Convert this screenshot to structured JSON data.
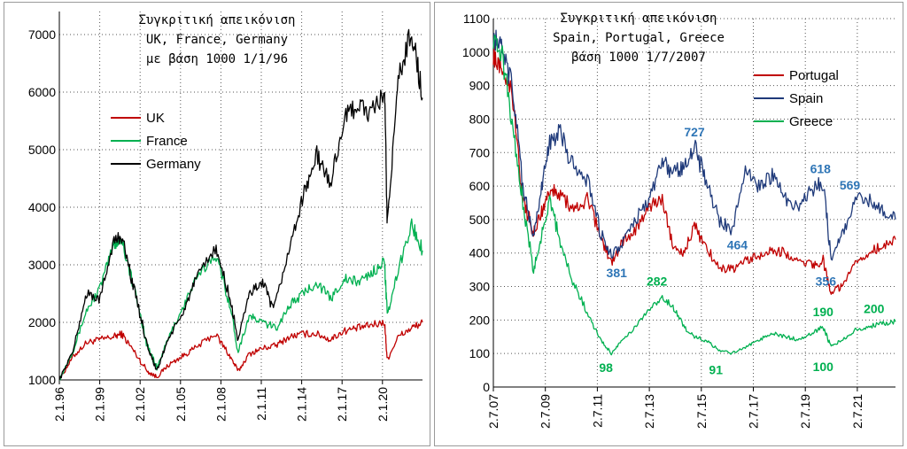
{
  "chart_data": [
    {
      "type": "line",
      "title_lines": [
        "Συγκριτική απεικόνιση",
        "UK, France, Germany",
        "με βάση 1000 1/1/96"
      ],
      "x_ticks": [
        "2.1.96",
        "2.1.99",
        "2.1.02",
        "2.1.05",
        "2.1.08",
        "2.1.11",
        "2.1.14",
        "2.1.17",
        "2.1.20"
      ],
      "x_range": [
        1996.0,
        2022.8
      ],
      "ylim": [
        1000,
        7400
      ],
      "y_ticks": [
        1000,
        2000,
        3000,
        4000,
        5000,
        6000,
        7000
      ],
      "grid": "dotted",
      "legend_position": "upper-left",
      "series": [
        {
          "name": "UK",
          "color": "#c00000",
          "x": [
            1996.0,
            1997.0,
            1998.0,
            1999.0,
            2000.0,
            2000.6,
            2001.5,
            2002.5,
            2003.2,
            2004.0,
            2005.0,
            2006.0,
            2007.5,
            2008.5,
            2009.2,
            2010.0,
            2011.0,
            2012.0,
            2013.0,
            2014.0,
            2015.0,
            2016.0,
            2017.0,
            2018.0,
            2019.0,
            2020.0,
            2020.2,
            2021.0,
            2022.0,
            2022.8
          ],
          "y": [
            1000,
            1400,
            1650,
            1700,
            1750,
            1800,
            1500,
            1150,
            1050,
            1250,
            1400,
            1550,
            1800,
            1450,
            1150,
            1450,
            1550,
            1600,
            1750,
            1800,
            1800,
            1700,
            1850,
            1900,
            1950,
            2000,
            1350,
            1750,
            1900,
            2000
          ]
        },
        {
          "name": "France",
          "color": "#00b050",
          "x": [
            1996.0,
            1997.0,
            1998.0,
            1999.0,
            2000.0,
            2000.6,
            2001.5,
            2002.5,
            2003.2,
            2004.0,
            2005.0,
            2006.0,
            2007.5,
            2008.5,
            2009.2,
            2010.0,
            2011.0,
            2012.0,
            2013.0,
            2014.0,
            2015.0,
            2016.0,
            2017.0,
            2018.0,
            2019.0,
            2020.0,
            2020.2,
            2021.0,
            2022.0,
            2022.8
          ],
          "y": [
            1000,
            1500,
            2200,
            2600,
            3350,
            3450,
            2600,
            1600,
            1200,
            1700,
            2200,
            2700,
            3200,
            2400,
            1500,
            2100,
            2000,
            1900,
            2300,
            2500,
            2700,
            2400,
            2750,
            2700,
            2850,
            3050,
            2100,
            2900,
            3700,
            3250
          ]
        },
        {
          "name": "Germany",
          "color": "#000000",
          "x": [
            1996.0,
            1997.0,
            1998.0,
            1999.0,
            2000.0,
            2000.6,
            2001.5,
            2002.5,
            2003.2,
            2004.0,
            2005.0,
            2006.0,
            2007.5,
            2008.5,
            2009.2,
            2010.0,
            2011.0,
            2011.8,
            2013.0,
            2014.0,
            2015.0,
            2016.0,
            2017.0,
            2018.0,
            2019.0,
            2020.0,
            2020.2,
            2021.0,
            2022.0,
            2022.8
          ],
          "y": [
            1000,
            1500,
            2500,
            2400,
            3400,
            3500,
            2600,
            1600,
            1150,
            1700,
            2100,
            2700,
            3300,
            2500,
            1700,
            2500,
            2700,
            2200,
            3300,
            4200,
            4900,
            4400,
            5500,
            5800,
            5600,
            6000,
            3700,
            6200,
            7100,
            5900
          ]
        }
      ]
    },
    {
      "type": "line",
      "title_lines": [
        "Συγκριτική απεικόνιση",
        "Spain, Portugal, Greece",
        "βάση 1000 1/7/2007"
      ],
      "x_ticks": [
        "2.7.07",
        "2.7.09",
        "2.7.11",
        "2.7.13",
        "2.7.15",
        "2.7.17",
        "2.7.19",
        "2.7.21"
      ],
      "x_range": [
        2007.5,
        2022.5
      ],
      "ylim": [
        0,
        1100
      ],
      "y_ticks": [
        0,
        100,
        200,
        300,
        400,
        500,
        600,
        700,
        800,
        900,
        1000,
        1100
      ],
      "grid": "dotted",
      "legend_position": "upper-right",
      "annotations": [
        {
          "text": "727",
          "x": 2015.0,
          "y": 727,
          "color": "#2e75b6"
        },
        {
          "text": "618",
          "x": 2019.7,
          "y": 618,
          "color": "#2e75b6"
        },
        {
          "text": "569",
          "x": 2020.8,
          "y": 569,
          "color": "#2e75b6"
        },
        {
          "text": "464",
          "x": 2016.6,
          "y": 464,
          "color": "#2e75b6"
        },
        {
          "text": "381",
          "x": 2012.1,
          "y": 381,
          "color": "#2e75b6"
        },
        {
          "text": "356",
          "x": 2019.9,
          "y": 356,
          "color": "#2e75b6"
        },
        {
          "text": "282",
          "x": 2013.6,
          "y": 282,
          "color": "#00b050"
        },
        {
          "text": "190",
          "x": 2019.8,
          "y": 190,
          "color": "#00b050"
        },
        {
          "text": "200",
          "x": 2021.7,
          "y": 200,
          "color": "#00b050"
        },
        {
          "text": "98",
          "x": 2011.7,
          "y": 98,
          "color": "#00b050"
        },
        {
          "text": "91",
          "x": 2015.8,
          "y": 91,
          "color": "#00b050"
        },
        {
          "text": "100",
          "x": 2019.8,
          "y": 100,
          "color": "#00b050"
        }
      ],
      "series": [
        {
          "name": "Portugal",
          "color": "#c00000",
          "x": [
            2007.5,
            2007.8,
            2008.2,
            2008.6,
            2009.0,
            2009.3,
            2009.6,
            2010.0,
            2010.5,
            2011.0,
            2011.5,
            2011.9,
            2012.3,
            2012.8,
            2013.3,
            2013.8,
            2014.2,
            2014.6,
            2015.0,
            2015.4,
            2015.9,
            2016.4,
            2016.9,
            2017.4,
            2017.9,
            2018.4,
            2018.9,
            2019.4,
            2019.8,
            2020.1,
            2020.5,
            2021.0,
            2021.5,
            2022.0,
            2022.5
          ],
          "y": [
            1000,
            960,
            880,
            560,
            460,
            520,
            590,
            580,
            520,
            560,
            450,
            370,
            430,
            470,
            540,
            560,
            420,
            400,
            480,
            420,
            360,
            350,
            380,
            390,
            410,
            400,
            380,
            360,
            380,
            280,
            300,
            380,
            400,
            420,
            440
          ]
        },
        {
          "name": "Spain",
          "color": "#1f3a7a",
          "x": [
            2007.5,
            2007.8,
            2008.2,
            2008.6,
            2009.0,
            2009.3,
            2009.6,
            2010.0,
            2010.5,
            2011.0,
            2011.5,
            2011.9,
            2012.3,
            2012.8,
            2013.3,
            2013.8,
            2014.2,
            2014.6,
            2015.0,
            2015.4,
            2015.9,
            2016.4,
            2016.9,
            2017.4,
            2017.9,
            2018.4,
            2018.9,
            2019.4,
            2019.8,
            2020.1,
            2020.5,
            2021.0,
            2021.5,
            2022.0,
            2022.5
          ],
          "y": [
            1050,
            1000,
            900,
            600,
            450,
            600,
            730,
            760,
            650,
            620,
            460,
            390,
            430,
            500,
            560,
            670,
            640,
            660,
            720,
            620,
            500,
            470,
            640,
            600,
            630,
            560,
            540,
            590,
            610,
            380,
            450,
            560,
            560,
            530,
            500
          ]
        },
        {
          "name": "Greece",
          "color": "#00b050",
          "x": [
            2007.5,
            2007.8,
            2008.2,
            2008.6,
            2009.0,
            2009.3,
            2009.6,
            2010.0,
            2010.5,
            2011.0,
            2011.5,
            2011.9,
            2012.3,
            2012.8,
            2013.3,
            2013.8,
            2014.2,
            2014.6,
            2015.0,
            2015.4,
            2015.9,
            2016.4,
            2016.9,
            2017.4,
            2017.9,
            2018.4,
            2018.9,
            2019.4,
            2019.8,
            2020.1,
            2020.5,
            2021.0,
            2021.5,
            2022.0,
            2022.5
          ],
          "y": [
            1050,
            1000,
            800,
            550,
            350,
            450,
            560,
            430,
            310,
            220,
            140,
            100,
            140,
            180,
            230,
            270,
            240,
            180,
            150,
            140,
            110,
            100,
            120,
            140,
            160,
            150,
            140,
            160,
            180,
            120,
            140,
            170,
            180,
            190,
            195
          ]
        }
      ]
    }
  ]
}
